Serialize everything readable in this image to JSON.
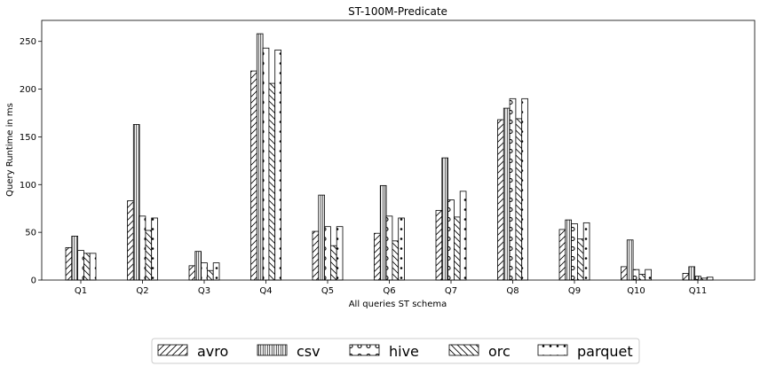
{
  "chart_data": {
    "type": "bar",
    "title": "ST-100M-Predicate",
    "xlabel": "All queries ST schema",
    "ylabel": "Query Runtime in ms",
    "ylim": [
      0,
      272
    ],
    "yticks": [
      "0",
      "50",
      "100",
      "150",
      "200",
      "250"
    ],
    "categories": [
      "Q1",
      "Q2",
      "Q3",
      "Q4",
      "Q5",
      "Q6",
      "Q7",
      "Q8",
      "Q9",
      "Q10",
      "Q11"
    ],
    "series": [
      {
        "name": "avro",
        "pattern": "diagonal-forward",
        "values": [
          34,
          83,
          15,
          219,
          51,
          49,
          73,
          168,
          53,
          14,
          7
        ]
      },
      {
        "name": "csv",
        "pattern": "vertical-lines",
        "values": [
          46,
          163,
          30,
          258,
          89,
          99,
          128,
          180,
          63,
          42,
          14
        ]
      },
      {
        "name": "hive",
        "pattern": "circles",
        "values": [
          31,
          67,
          18,
          243,
          56,
          67,
          84,
          190,
          59,
          11,
          4
        ]
      },
      {
        "name": "orc",
        "pattern": "diagonal-back",
        "values": [
          28,
          52,
          10,
          206,
          36,
          41,
          66,
          169,
          43,
          6,
          2
        ]
      },
      {
        "name": "parquet",
        "pattern": "dots",
        "values": [
          28,
          65,
          18,
          241,
          56,
          65,
          93,
          190,
          60,
          11,
          3
        ]
      }
    ],
    "grid": false,
    "legend_position": "bottom"
  }
}
